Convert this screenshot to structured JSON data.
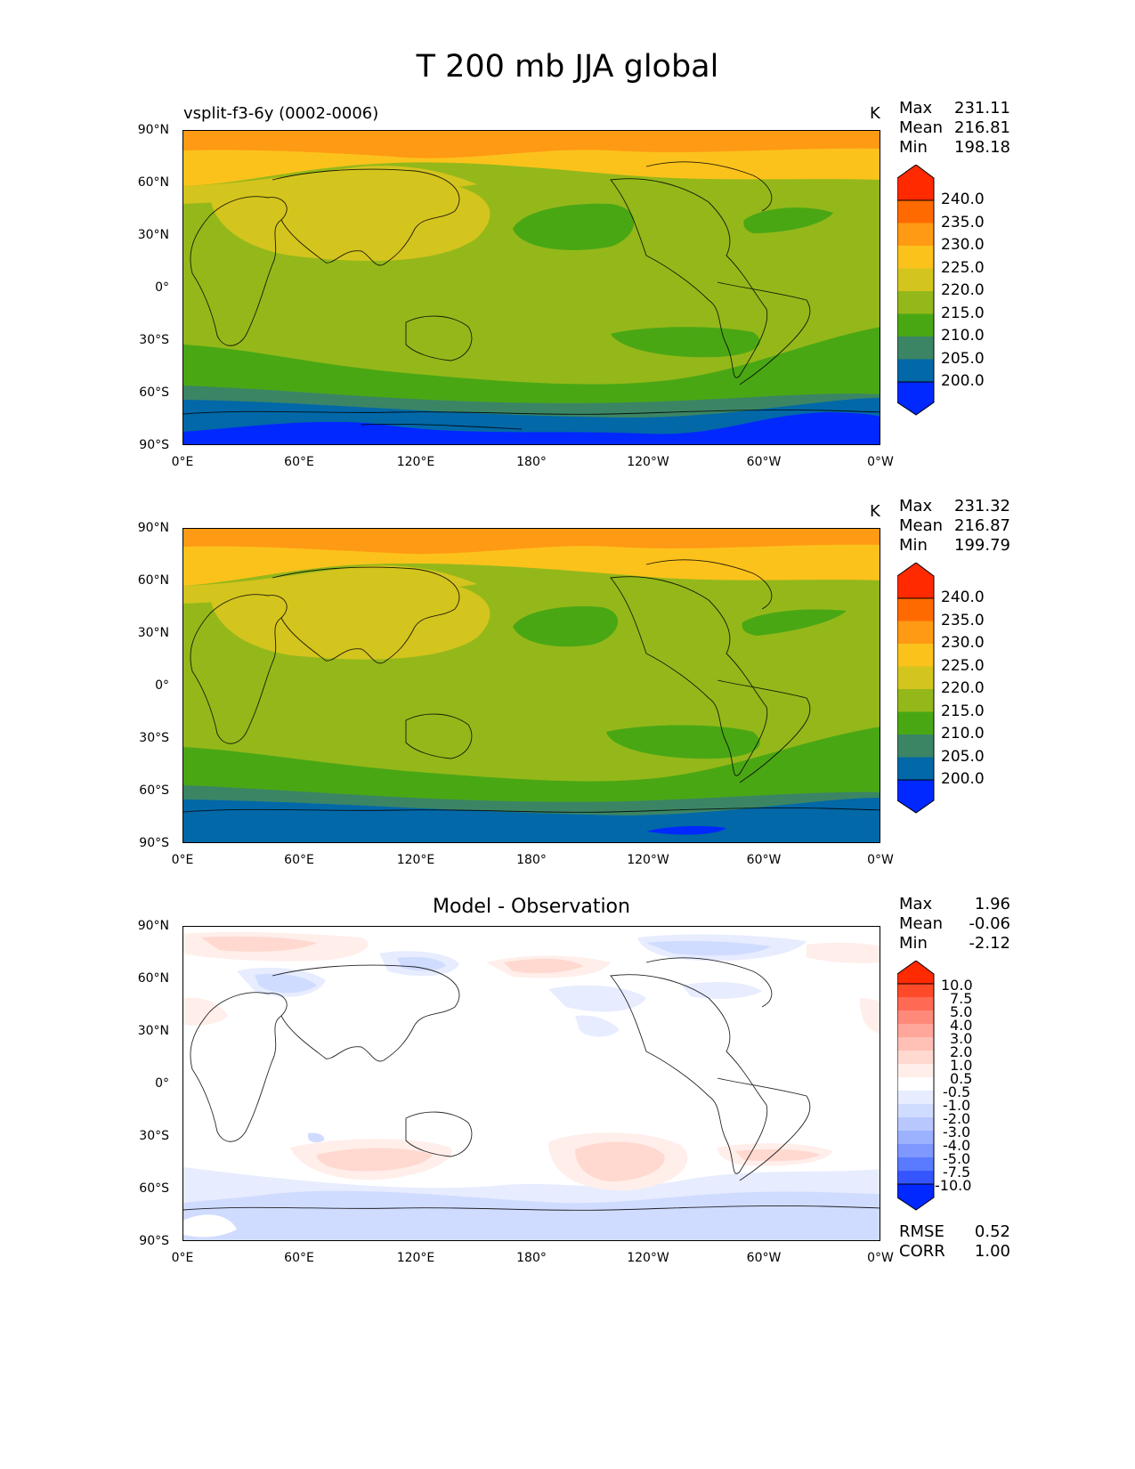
{
  "figure": {
    "title": "T 200 mb JJA global"
  },
  "axes": {
    "yticks": [
      "90°N",
      "60°N",
      "30°N",
      "0°",
      "30°S",
      "60°S",
      "90°S"
    ],
    "xticks": [
      "0°E",
      "60°E",
      "120°E",
      "180°",
      "120°W",
      "60°W",
      "0°W"
    ]
  },
  "panels": [
    {
      "id": "test",
      "title": "vsplit-f3-6y (0002-0006)",
      "units": "K",
      "stats": [
        {
          "label": "Max",
          "value": "231.11"
        },
        {
          "label": "Mean",
          "value": "216.81"
        },
        {
          "label": "Min",
          "value": "198.18"
        }
      ],
      "colorbar": {
        "levels": [
          "240.0",
          "235.0",
          "230.0",
          "225.0",
          "220.0",
          "215.0",
          "210.0",
          "205.0",
          "200.0"
        ],
        "colors": [
          "#ff2a00",
          "#ff6a00",
          "#ff9a14",
          "#fcc21c",
          "#d4c41e",
          "#94b81a",
          "#4aa714",
          "#3b8565",
          "#0268a8",
          "#0028ff"
        ]
      }
    },
    {
      "id": "reference",
      "title": "",
      "units": "K",
      "stats": [
        {
          "label": "Max",
          "value": "231.32"
        },
        {
          "label": "Mean",
          "value": "216.87"
        },
        {
          "label": "Min",
          "value": "199.79"
        }
      ],
      "colorbar": {
        "levels": [
          "240.0",
          "235.0",
          "230.0",
          "225.0",
          "220.0",
          "215.0",
          "210.0",
          "205.0",
          "200.0"
        ],
        "colors": [
          "#ff2a00",
          "#ff6a00",
          "#ff9a14",
          "#fcc21c",
          "#d4c41e",
          "#94b81a",
          "#4aa714",
          "#3b8565",
          "#0268a8",
          "#0028ff"
        ]
      }
    },
    {
      "id": "diff",
      "title": "Model - Observation",
      "units": "",
      "stats": [
        {
          "label": "Max",
          "value": "1.96"
        },
        {
          "label": "Mean",
          "value": "-0.06"
        },
        {
          "label": "Min",
          "value": "-2.12"
        }
      ],
      "metrics": [
        {
          "label": "RMSE",
          "value": "0.52"
        },
        {
          "label": "CORR",
          "value": "1.00"
        }
      ],
      "colorbar": {
        "levels": [
          "10.0",
          "7.5",
          "5.0",
          "4.0",
          "3.0",
          "2.0",
          "1.0",
          "0.5",
          "-0.5",
          "-1.0",
          "-2.0",
          "-3.0",
          "-4.0",
          "-5.0",
          "-7.5",
          "-10.0"
        ],
        "colors": [
          "#ff2a00",
          "#ff4a2a",
          "#ff6a55",
          "#ff8a7a",
          "#ffa79a",
          "#ffc0b5",
          "#ffd8d0",
          "#ffeeea",
          "#ffffff",
          "#e7ecff",
          "#d0dcff",
          "#b8c8ff",
          "#9cb2ff",
          "#7e98ff",
          "#5a7aff",
          "#3556ff",
          "#0028ff"
        ]
      }
    }
  ]
}
